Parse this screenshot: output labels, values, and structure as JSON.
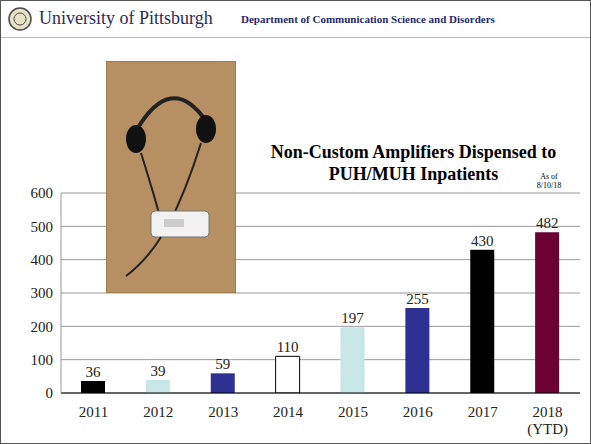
{
  "header": {
    "institution": "University of Pittsburgh",
    "department": "Department of Communication Science and Disorders"
  },
  "chart_data": {
    "type": "bar",
    "title": "Non-Custom Amplifiers Dispensed to PUH/MUH Inpatients",
    "annotation": "As of 8/10/18",
    "categories": [
      "2011",
      "2012",
      "2013",
      "2014",
      "2015",
      "2016",
      "2017",
      "2018 (YTD)"
    ],
    "values": [
      36,
      39,
      59,
      110,
      197,
      255,
      430,
      482
    ],
    "colors": [
      "#000000",
      "#c9e6e6",
      "#2e3192",
      "#ffffff",
      "#c9e6e6",
      "#2e3192",
      "#000000",
      "#6b0033"
    ],
    "ylim": [
      0,
      600
    ],
    "yticks": [
      0,
      100,
      200,
      300,
      400,
      500,
      600
    ],
    "grid": true,
    "data_labels": true
  }
}
